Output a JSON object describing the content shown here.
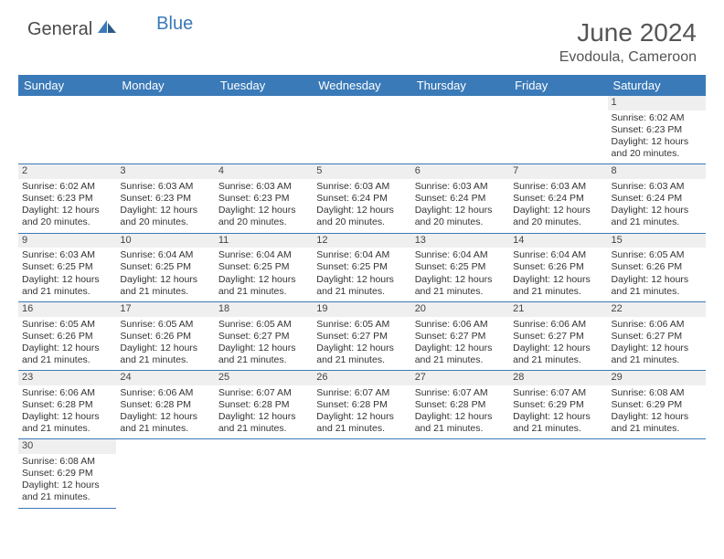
{
  "logo": {
    "text1": "General",
    "text2": "Blue"
  },
  "title": "June 2024",
  "location": "Evodoula, Cameroon",
  "colors": {
    "header_bg": "#3a7ab8",
    "header_text": "#ffffff",
    "daynum_bg": "#efefef",
    "border": "#3a7ab8",
    "body_text": "#333333"
  },
  "day_headers": [
    "Sunday",
    "Monday",
    "Tuesday",
    "Wednesday",
    "Thursday",
    "Friday",
    "Saturday"
  ],
  "weeks": [
    [
      null,
      null,
      null,
      null,
      null,
      null,
      {
        "n": "1",
        "sr": "6:02 AM",
        "ss": "6:23 PM",
        "dl": "12 hours and 20 minutes."
      }
    ],
    [
      {
        "n": "2",
        "sr": "6:02 AM",
        "ss": "6:23 PM",
        "dl": "12 hours and 20 minutes."
      },
      {
        "n": "3",
        "sr": "6:03 AM",
        "ss": "6:23 PM",
        "dl": "12 hours and 20 minutes."
      },
      {
        "n": "4",
        "sr": "6:03 AM",
        "ss": "6:23 PM",
        "dl": "12 hours and 20 minutes."
      },
      {
        "n": "5",
        "sr": "6:03 AM",
        "ss": "6:24 PM",
        "dl": "12 hours and 20 minutes."
      },
      {
        "n": "6",
        "sr": "6:03 AM",
        "ss": "6:24 PM",
        "dl": "12 hours and 20 minutes."
      },
      {
        "n": "7",
        "sr": "6:03 AM",
        "ss": "6:24 PM",
        "dl": "12 hours and 20 minutes."
      },
      {
        "n": "8",
        "sr": "6:03 AM",
        "ss": "6:24 PM",
        "dl": "12 hours and 21 minutes."
      }
    ],
    [
      {
        "n": "9",
        "sr": "6:03 AM",
        "ss": "6:25 PM",
        "dl": "12 hours and 21 minutes."
      },
      {
        "n": "10",
        "sr": "6:04 AM",
        "ss": "6:25 PM",
        "dl": "12 hours and 21 minutes."
      },
      {
        "n": "11",
        "sr": "6:04 AM",
        "ss": "6:25 PM",
        "dl": "12 hours and 21 minutes."
      },
      {
        "n": "12",
        "sr": "6:04 AM",
        "ss": "6:25 PM",
        "dl": "12 hours and 21 minutes."
      },
      {
        "n": "13",
        "sr": "6:04 AM",
        "ss": "6:25 PM",
        "dl": "12 hours and 21 minutes."
      },
      {
        "n": "14",
        "sr": "6:04 AM",
        "ss": "6:26 PM",
        "dl": "12 hours and 21 minutes."
      },
      {
        "n": "15",
        "sr": "6:05 AM",
        "ss": "6:26 PM",
        "dl": "12 hours and 21 minutes."
      }
    ],
    [
      {
        "n": "16",
        "sr": "6:05 AM",
        "ss": "6:26 PM",
        "dl": "12 hours and 21 minutes."
      },
      {
        "n": "17",
        "sr": "6:05 AM",
        "ss": "6:26 PM",
        "dl": "12 hours and 21 minutes."
      },
      {
        "n": "18",
        "sr": "6:05 AM",
        "ss": "6:27 PM",
        "dl": "12 hours and 21 minutes."
      },
      {
        "n": "19",
        "sr": "6:05 AM",
        "ss": "6:27 PM",
        "dl": "12 hours and 21 minutes."
      },
      {
        "n": "20",
        "sr": "6:06 AM",
        "ss": "6:27 PM",
        "dl": "12 hours and 21 minutes."
      },
      {
        "n": "21",
        "sr": "6:06 AM",
        "ss": "6:27 PM",
        "dl": "12 hours and 21 minutes."
      },
      {
        "n": "22",
        "sr": "6:06 AM",
        "ss": "6:27 PM",
        "dl": "12 hours and 21 minutes."
      }
    ],
    [
      {
        "n": "23",
        "sr": "6:06 AM",
        "ss": "6:28 PM",
        "dl": "12 hours and 21 minutes."
      },
      {
        "n": "24",
        "sr": "6:06 AM",
        "ss": "6:28 PM",
        "dl": "12 hours and 21 minutes."
      },
      {
        "n": "25",
        "sr": "6:07 AM",
        "ss": "6:28 PM",
        "dl": "12 hours and 21 minutes."
      },
      {
        "n": "26",
        "sr": "6:07 AM",
        "ss": "6:28 PM",
        "dl": "12 hours and 21 minutes."
      },
      {
        "n": "27",
        "sr": "6:07 AM",
        "ss": "6:28 PM",
        "dl": "12 hours and 21 minutes."
      },
      {
        "n": "28",
        "sr": "6:07 AM",
        "ss": "6:29 PM",
        "dl": "12 hours and 21 minutes."
      },
      {
        "n": "29",
        "sr": "6:08 AM",
        "ss": "6:29 PM",
        "dl": "12 hours and 21 minutes."
      }
    ],
    [
      {
        "n": "30",
        "sr": "6:08 AM",
        "ss": "6:29 PM",
        "dl": "12 hours and 21 minutes."
      },
      null,
      null,
      null,
      null,
      null,
      null
    ]
  ],
  "labels": {
    "sunrise": "Sunrise:",
    "sunset": "Sunset:",
    "daylight": "Daylight:"
  }
}
